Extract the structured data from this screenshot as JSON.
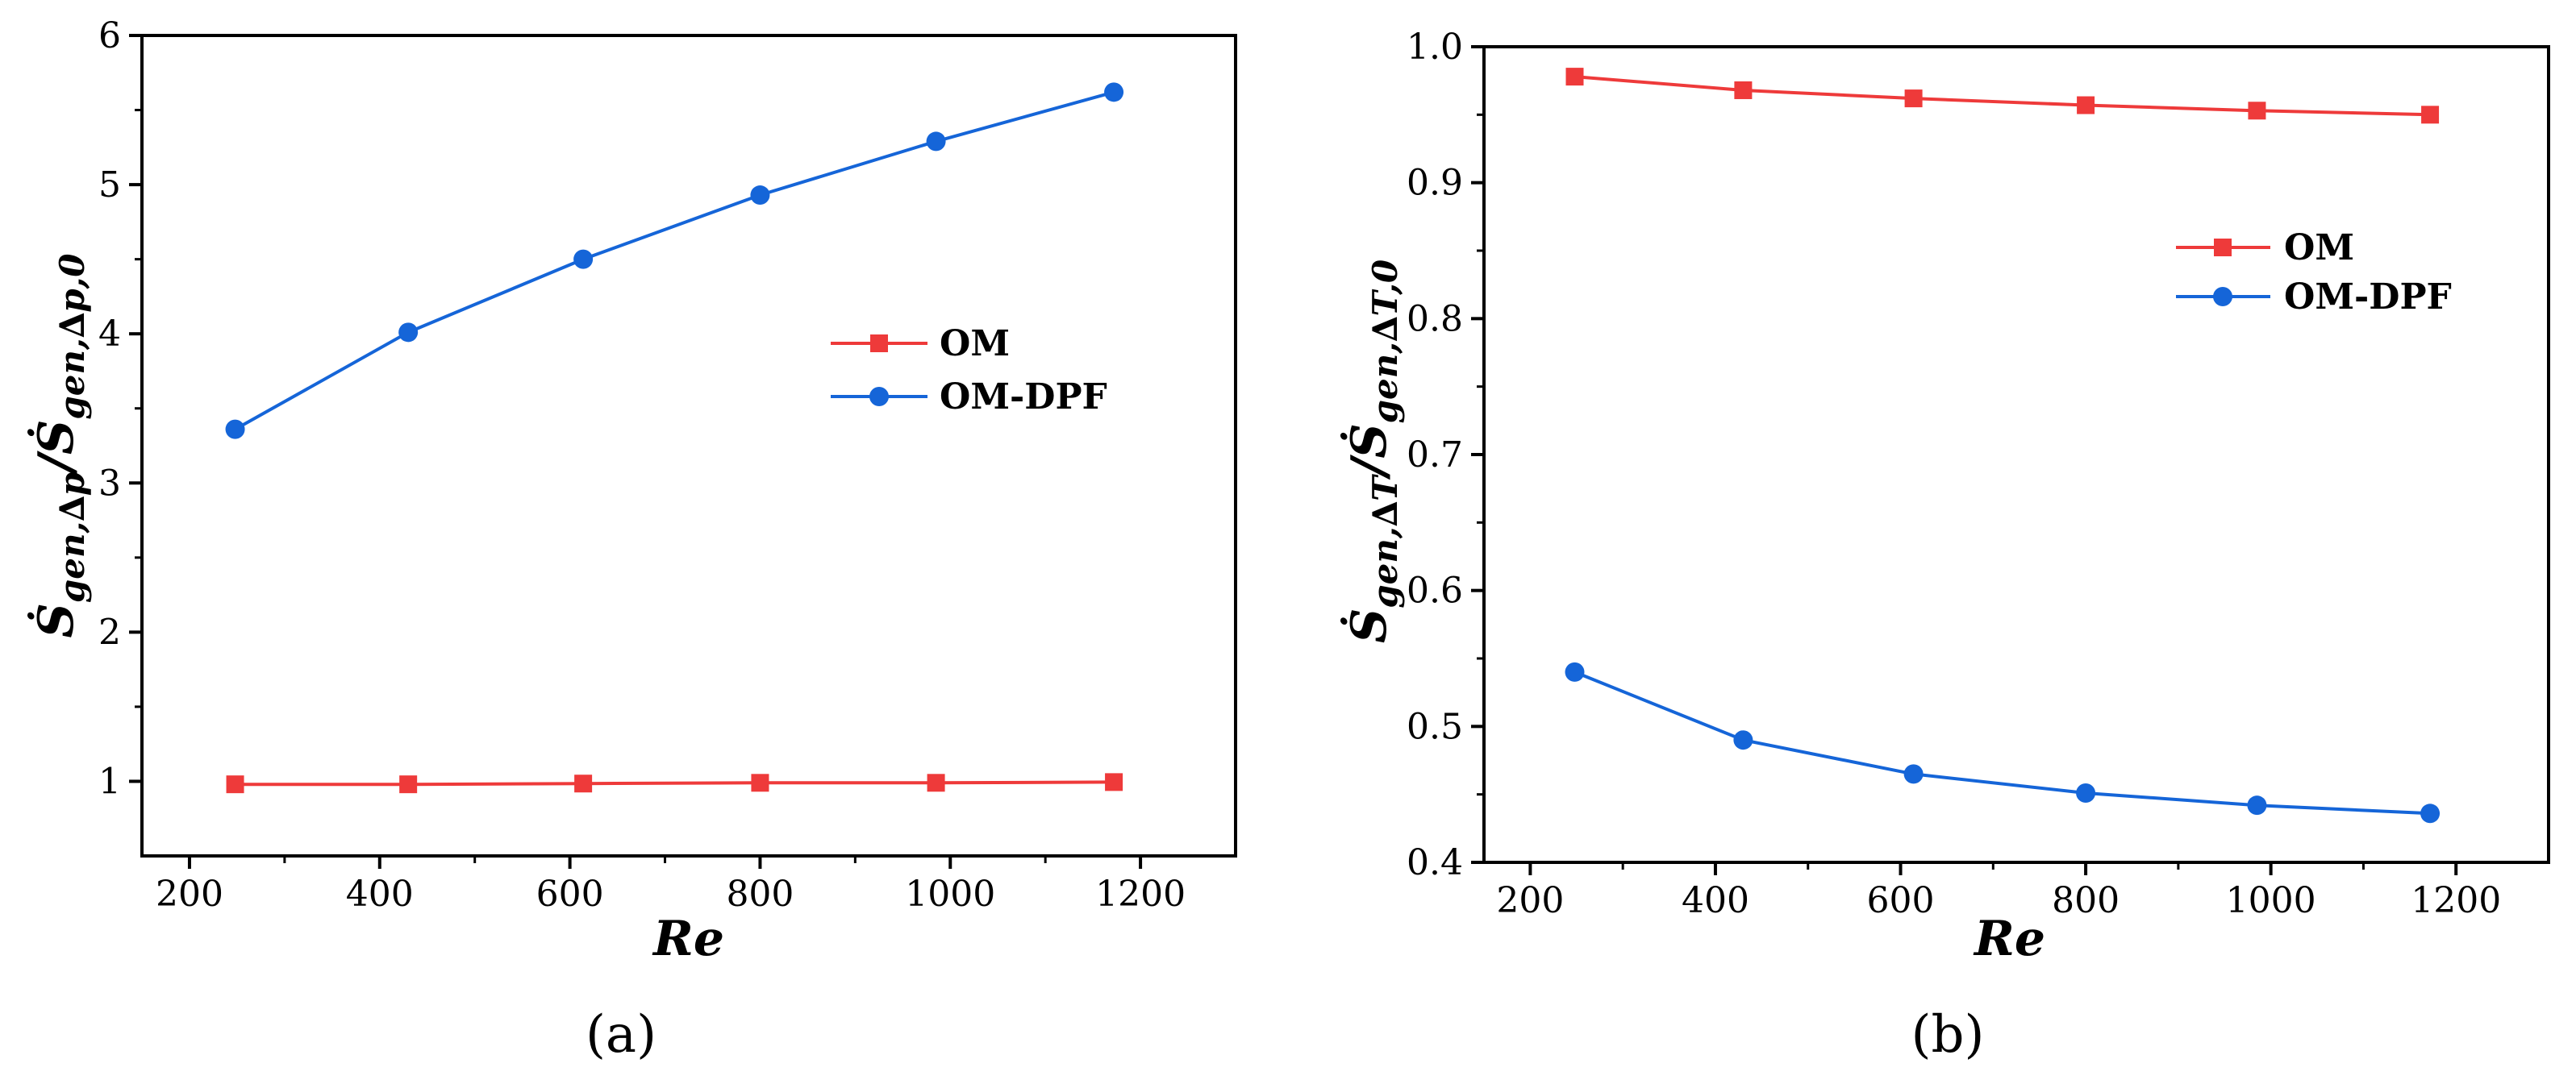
{
  "chart_data": [
    {
      "id": "a",
      "type": "line",
      "panel_label": "(a)",
      "xlabel": "Re",
      "ylabel": {
        "parts": [
          "Ṡ",
          "gen,∆p",
          "/",
          "Ṡ",
          "gen,∆p,0"
        ],
        "text": "Ṡgen,∆p/Ṡgen,∆p,0"
      },
      "xlim": [
        150,
        1300
      ],
      "ylim": [
        0.5,
        6
      ],
      "xticks": [
        200,
        400,
        600,
        800,
        1000,
        1200
      ],
      "xtick_labels": [
        "200",
        "400",
        "600",
        "800",
        "1000",
        "1200"
      ],
      "yticks": [
        1,
        2,
        3,
        4,
        5,
        6
      ],
      "ytick_labels": [
        "1",
        "2",
        "3",
        "4",
        "5",
        "6"
      ],
      "x": [
        248,
        430,
        614,
        800,
        985,
        1172
      ],
      "series": [
        {
          "name": "OM",
          "color": "#ee3a3a",
          "marker": "square",
          "values": [
            0.98,
            0.98,
            0.985,
            0.99,
            0.99,
            0.995
          ]
        },
        {
          "name": "OM-DPF",
          "color": "#1565d8",
          "marker": "circle",
          "values": [
            3.36,
            4.01,
            4.5,
            4.93,
            5.29,
            5.62
          ]
        }
      ],
      "legend": "center-right"
    },
    {
      "id": "b",
      "type": "line",
      "panel_label": "(b)",
      "xlabel": "Re",
      "ylabel": {
        "parts": [
          "Ṡ",
          "gen,∆T",
          "/",
          "Ṡ",
          "gen,∆T,0"
        ],
        "text": "Ṡgen,∆T/Ṡgen,∆T,0"
      },
      "xlim": [
        150,
        1300
      ],
      "ylim": [
        0.4,
        1.0
      ],
      "xticks": [
        200,
        400,
        600,
        800,
        1000,
        1200
      ],
      "xtick_labels": [
        "200",
        "400",
        "600",
        "800",
        "1000",
        "1200"
      ],
      "yticks": [
        0.4,
        0.5,
        0.6,
        0.7,
        0.8,
        0.9,
        1.0
      ],
      "ytick_labels": [
        "0.4",
        "0.5",
        "0.6",
        "0.7",
        "0.8",
        "0.9",
        "1.0"
      ],
      "x": [
        248,
        430,
        614,
        800,
        985,
        1172
      ],
      "series": [
        {
          "name": "OM",
          "color": "#ee3a3a",
          "marker": "square",
          "values": [
            0.978,
            0.968,
            0.962,
            0.957,
            0.953,
            0.95
          ]
        },
        {
          "name": "OM-DPF",
          "color": "#1565d8",
          "marker": "circle",
          "values": [
            0.54,
            0.49,
            0.465,
            0.451,
            0.442,
            0.436
          ]
        }
      ],
      "legend": "upper-right"
    }
  ]
}
